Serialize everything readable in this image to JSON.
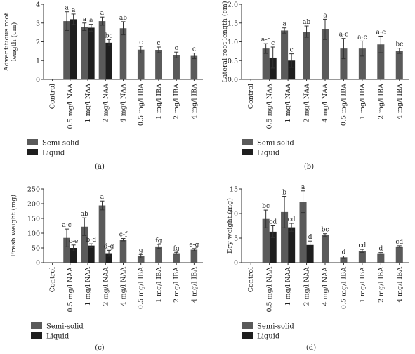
{
  "colors": {
    "semi_solid": "#5a5a5a",
    "liquid": "#1e1e1e",
    "axis": "#333333"
  },
  "chart_data": [
    {
      "type": "bar",
      "panel_label": "(a)",
      "ylabel": "Adventitious root length (cm)",
      "ylabel_lines": [
        "Adventitious root",
        "length (cm)"
      ],
      "ylim": [
        0,
        4
      ],
      "yticks": [
        "0",
        "1",
        "2",
        "3",
        "4"
      ],
      "categories": [
        "Control",
        "0.5 mg/l NAA",
        "1 mg/l NAA",
        "2 mg/l NAA",
        "4 mg/l NAA",
        "0.5 mg/l IBA",
        "1 mg/l IBA",
        "2 mg/l IBA",
        "4 mg/l IBA"
      ],
      "series": [
        {
          "name": "Semi-solid",
          "values": [
            0,
            3.1,
            2.8,
            3.1,
            2.72,
            1.58,
            1.57,
            1.3,
            1.25
          ],
          "errors": [
            0,
            0.5,
            0.2,
            0.22,
            0.35,
            0.18,
            0.15,
            0.15,
            0.15
          ],
          "labels": [
            "",
            "a",
            "a",
            "a",
            "ab",
            "c",
            "c",
            "c",
            "c"
          ]
        },
        {
          "name": "Liquid",
          "values": [
            0,
            3.2,
            2.75,
            1.95,
            null,
            null,
            null,
            null,
            null
          ],
          "errors": [
            0,
            0.28,
            0.18,
            0.17,
            null,
            null,
            null,
            null,
            null
          ],
          "labels": [
            "",
            "a",
            "a",
            "bc",
            "",
            "",
            "",
            "",
            ""
          ]
        }
      ],
      "legend": [
        "Semi-solid",
        "Liquid"
      ],
      "legend_position": "bottom-left"
    },
    {
      "type": "bar",
      "panel_label": "(b)",
      "ylabel": "Lateral root length (cm)",
      "ylabel_lines": [
        "Lateral root length (cm)"
      ],
      "ylim": [
        0,
        2
      ],
      "yticks": [
        "0.0",
        "0.5",
        "1.0",
        "1.5",
        "2.0"
      ],
      "categories": [
        "Control",
        "0.5 mg/l NAA",
        "1 mg/l NAA",
        "2 mg/l NAA",
        "4 mg/l NAA",
        "0.5 mg/l IBA",
        "1 mg/l IBA",
        "2 mg/l IBA",
        "4 mg/l IBA"
      ],
      "series": [
        {
          "name": "Semi-solid",
          "values": [
            0,
            0.82,
            1.3,
            1.27,
            1.33,
            0.82,
            0.82,
            0.93,
            0.76
          ],
          "errors": [
            0,
            0.13,
            0.07,
            0.15,
            0.27,
            0.27,
            0.2,
            0.22,
            0.07
          ],
          "labels": [
            "",
            "a-c",
            "a",
            "ab",
            "a",
            "a-c",
            "a-c",
            "a-c",
            "bc"
          ]
        },
        {
          "name": "Liquid",
          "values": [
            0,
            0.58,
            0.5,
            null,
            null,
            null,
            null,
            null,
            null
          ],
          "errors": [
            0,
            0.28,
            0.18,
            null,
            null,
            null,
            null,
            null,
            null
          ],
          "labels": [
            "",
            "c",
            "c",
            "",
            "",
            "",
            "",
            "",
            ""
          ]
        }
      ],
      "legend": [
        "Semi-solid",
        "Liquid"
      ],
      "legend_position": "bottom-left"
    },
    {
      "type": "bar",
      "panel_label": "(c)",
      "ylabel": "Fresh weight (mg)",
      "ylabel_lines": [
        "Fresh weight (mg)"
      ],
      "ylim": [
        0,
        250
      ],
      "yticks": [
        "0",
        "50",
        "100",
        "150",
        "200",
        "250"
      ],
      "categories": [
        "Control",
        "0.5 mg/l NAA",
        "1 mg/l NAA",
        "2 mg/l NAA",
        "4 mg/l NAA",
        "0.5 mg/l IBA",
        "1 mg/l IBA",
        "2 mg/l IBA",
        "4 mg/l IBA"
      ],
      "series": [
        {
          "name": "Semi-solid",
          "values": [
            0,
            84,
            122,
            194,
            78,
            22,
            55,
            32,
            44
          ],
          "errors": [
            0,
            30,
            30,
            15,
            4,
            6,
            7,
            3,
            4
          ],
          "labels": [
            "",
            "a-c",
            "ab",
            "a",
            "c-f",
            "g",
            "fg",
            "fg",
            "e-g"
          ]
        },
        {
          "name": "Liquid",
          "values": [
            0,
            50,
            58,
            32,
            null,
            null,
            null,
            null,
            null
          ],
          "errors": [
            0,
            10,
            6,
            10,
            null,
            null,
            null,
            null,
            null
          ],
          "labels": [
            "",
            "c-e",
            "b-d",
            "d-g",
            "",
            "",
            "",
            "",
            ""
          ]
        }
      ],
      "legend": [
        "Semi-solid",
        "Liquid"
      ],
      "legend_position": "bottom-left"
    },
    {
      "type": "bar",
      "panel_label": "(d)",
      "ylabel": "Dry weight (mg)",
      "ylabel_lines": [
        "Dry weight (mg)"
      ],
      "ylim": [
        0,
        15
      ],
      "yticks": [
        "0",
        "5",
        "10",
        "15"
      ],
      "categories": [
        "Control",
        "0.5 mg/l NAA",
        "1 mg/l NAA",
        "2 mg/l NAA",
        "4 mg/l NAA",
        "0.5 mg/l IBA",
        "1 mg/l IBA",
        "2 mg/l IBA",
        "4 mg/l IBA"
      ],
      "series": [
        {
          "name": "Semi-solid",
          "values": [
            0,
            8.9,
            10.3,
            12.4,
            5.6,
            1.1,
            2.4,
            1.9,
            3.3
          ],
          "errors": [
            0,
            1.8,
            3.2,
            2.2,
            0.3,
            0.25,
            0.3,
            0.15,
            0.15
          ],
          "labels": [
            "",
            "bc",
            "b",
            "a",
            "bc",
            "d",
            "cd",
            "d",
            "cd"
          ]
        },
        {
          "name": "Liquid",
          "values": [
            0,
            6.3,
            7.2,
            3.6,
            null,
            null,
            null,
            null,
            null
          ],
          "errors": [
            0,
            1.2,
            0.8,
            0.8,
            null,
            null,
            null,
            null,
            null
          ],
          "labels": [
            "",
            "cd",
            "cd",
            "d",
            "",
            "",
            "",
            "",
            ""
          ]
        }
      ],
      "legend": [
        "Semi-solid",
        "Liquid"
      ],
      "legend_position": "bottom-left"
    }
  ]
}
